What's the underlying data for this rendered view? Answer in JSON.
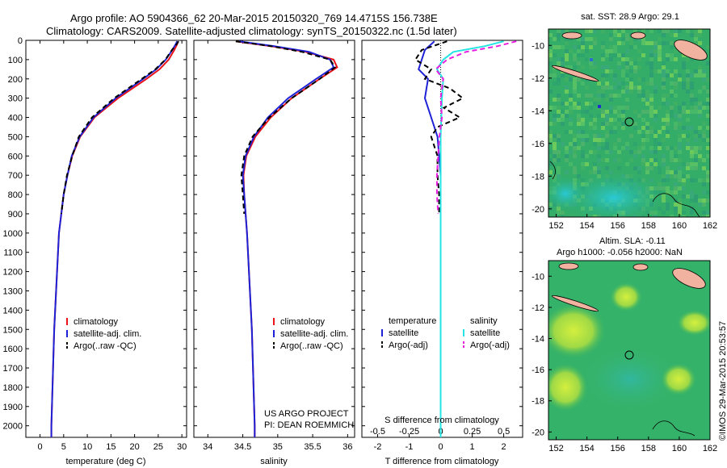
{
  "header": {
    "line1": "Argo profile: AO 5904366_62 20-Mar-2015 20150320_769 14.4715S 156.738E",
    "line2": "Climatology: CARS2009. Satellite-adjusted climatology: synTS_20150322.nc (1.5d later)"
  },
  "side_label": "©IMOS 29-Mar-2015 20:53:57",
  "credit": {
    "line1": "US ARGO PROJECT",
    "line2": "PI: DEAN ROEMMICH"
  },
  "colors": {
    "climatology": "#e8141a",
    "satellite": "#1e22d6",
    "argo": "#000000",
    "sal_sat": "#25e4e4",
    "sal_argo": "#e81ee0"
  },
  "chart_data": [
    {
      "type": "line",
      "name": "temperature",
      "xlabel": "temperature (deg C)",
      "ylabel": "",
      "xlim": [
        -3,
        31
      ],
      "ylim": [
        0,
        2060
      ],
      "xticks": [
        "0",
        "5",
        "10",
        "15",
        "20",
        "25",
        "30"
      ],
      "yticks": [
        "0",
        "100",
        "200",
        "300",
        "400",
        "500",
        "600",
        "700",
        "800",
        "900",
        "1000",
        "1100",
        "1200",
        "1300",
        "1400",
        "1500",
        "1600",
        "1700",
        "1800",
        "1900",
        "2000"
      ],
      "legend": [
        "climatology",
        "satellite-adj. clim.",
        "Argo(..raw -QC)"
      ],
      "series": [
        {
          "name": "climatology",
          "depth": [
            5,
            20,
            50,
            100,
            150,
            200,
            300,
            400,
            500,
            600,
            700,
            800,
            1000,
            1500,
            2000,
            2060
          ],
          "values": [
            29.2,
            29.0,
            28.4,
            27.2,
            25.3,
            22.5,
            16.5,
            11.5,
            8.5,
            6.8,
            5.8,
            5.0,
            4.0,
            3.0,
            2.4,
            2.4
          ]
        },
        {
          "name": "satellite-adj. clim.",
          "depth": [
            5,
            20,
            50,
            100,
            150,
            200,
            300,
            400,
            500,
            600,
            700,
            800,
            1000,
            1500,
            2000,
            2060
          ],
          "values": [
            29.0,
            28.7,
            28.0,
            26.6,
            24.6,
            21.8,
            16.0,
            11.3,
            8.4,
            6.7,
            5.8,
            5.0,
            4.0,
            3.0,
            2.4,
            2.4
          ]
        },
        {
          "name": "Argo(..raw -QC)",
          "depth": [
            5,
            20,
            50,
            100,
            150,
            200,
            300,
            400,
            500,
            600,
            700,
            800,
            900
          ],
          "values": [
            29.3,
            28.9,
            27.9,
            26.5,
            24.4,
            21.5,
            15.7,
            11.0,
            8.2,
            6.8,
            5.7,
            5.0,
            4.5
          ]
        }
      ]
    },
    {
      "type": "line",
      "name": "salinity",
      "xlabel": "salinity",
      "xlim": [
        33.8,
        36.1
      ],
      "ylim": [
        0,
        2060
      ],
      "xticks": [
        "34",
        "34.5",
        "35",
        "35.5",
        "36"
      ],
      "legend": [
        "climatology",
        "satellite-adj. clim.",
        "Argo(..raw -QC)"
      ],
      "series": [
        {
          "name": "climatology",
          "depth": [
            5,
            30,
            60,
            100,
            140,
            200,
            300,
            400,
            500,
            600,
            700,
            800,
            1000,
            1500,
            2000,
            2060
          ],
          "values": [
            34.4,
            34.9,
            35.4,
            35.8,
            35.85,
            35.6,
            35.2,
            34.9,
            34.68,
            34.55,
            34.51,
            34.52,
            34.56,
            34.63,
            34.67,
            34.67
          ]
        },
        {
          "name": "satellite-adj. clim.",
          "depth": [
            5,
            30,
            60,
            100,
            140,
            200,
            300,
            400,
            500,
            600,
            700,
            800,
            1000,
            1500,
            2000,
            2060
          ],
          "values": [
            34.45,
            34.95,
            35.45,
            35.75,
            35.8,
            35.55,
            35.15,
            34.86,
            34.66,
            34.54,
            34.5,
            34.52,
            34.56,
            34.63,
            34.67,
            34.67
          ]
        },
        {
          "name": "Argo(..raw -QC)",
          "depth": [
            5,
            30,
            60,
            100,
            140,
            200,
            300,
            400,
            500,
            600,
            700,
            800,
            900
          ],
          "values": [
            34.4,
            34.9,
            35.35,
            35.75,
            35.82,
            35.6,
            35.2,
            34.88,
            34.64,
            34.52,
            34.48,
            34.5,
            34.52
          ]
        }
      ]
    },
    {
      "type": "line",
      "name": "difference",
      "xlabel": "T difference from climatology",
      "xlabel_top": "S difference from climatology",
      "xlim": [
        -2.5,
        2.6
      ],
      "ylim": [
        0,
        2060
      ],
      "xticks": [
        "-2",
        "-1",
        "0",
        "1",
        "2"
      ],
      "xticks_top": [
        "-0.5",
        "-0.25",
        "0",
        "0.25",
        "0.5"
      ],
      "legend_temp": [
        "temperature",
        "satellite",
        "Argo(-adj)"
      ],
      "legend_sal": [
        "salinity",
        "satellite",
        "Argo(-adj)"
      ],
      "series": [
        {
          "name": "T satellite",
          "depth": [
            5,
            50,
            100,
            150,
            200,
            300,
            400,
            500,
            600,
            700,
            800,
            1000,
            1500,
            2000,
            2060
          ],
          "values": [
            -0.2,
            -0.5,
            -0.6,
            -0.7,
            -0.4,
            -0.5,
            -0.3,
            -0.1,
            -0.05,
            0,
            0,
            0,
            0,
            0,
            0
          ]
        },
        {
          "name": "T Argo(-adj)",
          "depth": [
            5,
            50,
            100,
            150,
            200,
            250,
            300,
            350,
            400,
            450,
            500,
            550,
            600,
            700,
            800,
            900
          ],
          "values": [
            0.2,
            -0.6,
            -0.8,
            -0.3,
            -0.5,
            0.3,
            0.7,
            0.1,
            0.6,
            -0.1,
            -0.3,
            -0.2,
            -0.1,
            -0.1,
            -0.05,
            -0.05
          ]
        },
        {
          "name": "S satellite",
          "depth": [
            5,
            30,
            60,
            100,
            150,
            200,
            300,
            400,
            500,
            600,
            700,
            800,
            1000,
            1500,
            2000,
            2060
          ],
          "values": [
            0.5,
            0.35,
            0.1,
            0.02,
            -0.03,
            0.02,
            0.01,
            0.005,
            0,
            0,
            0,
            0,
            0,
            0,
            0,
            0
          ]
        },
        {
          "name": "S Argo(-adj)",
          "depth": [
            5,
            30,
            60,
            100,
            150,
            200,
            300,
            400,
            500,
            600,
            700,
            800,
            900
          ],
          "values": [
            0.6,
            0.45,
            0.2,
            0.05,
            -0.04,
            0.02,
            0.0,
            0.01,
            -0.01,
            -0.02,
            -0.03,
            -0.03,
            -0.02
          ]
        }
      ]
    },
    {
      "type": "heatmap",
      "name": "sst-map",
      "title": "sat. SST: 28.9 Argo: 29.1",
      "xlim": [
        151.5,
        162
      ],
      "ylim": [
        -20.5,
        -9
      ],
      "xticks": [
        "152",
        "154",
        "156",
        "158",
        "160",
        "162"
      ],
      "yticks": [
        "-10",
        "-12",
        "-14",
        "-16",
        "-18",
        "-20"
      ],
      "marker": [
        156.738,
        -14.4715
      ]
    },
    {
      "type": "heatmap",
      "name": "sla-map",
      "title_line1": "Altim. SLA: -0.11",
      "title_line2": "Argo h1000: -0.056 h2000: NaN",
      "xlim": [
        151.5,
        162
      ],
      "ylim": [
        -20.5,
        -9
      ],
      "xticks": [
        "152",
        "154",
        "156",
        "158",
        "160",
        "162"
      ],
      "yticks": [
        "-10",
        "-12",
        "-14",
        "-16",
        "-18",
        "-20"
      ],
      "marker": [
        156.738,
        -14.4715
      ]
    }
  ]
}
